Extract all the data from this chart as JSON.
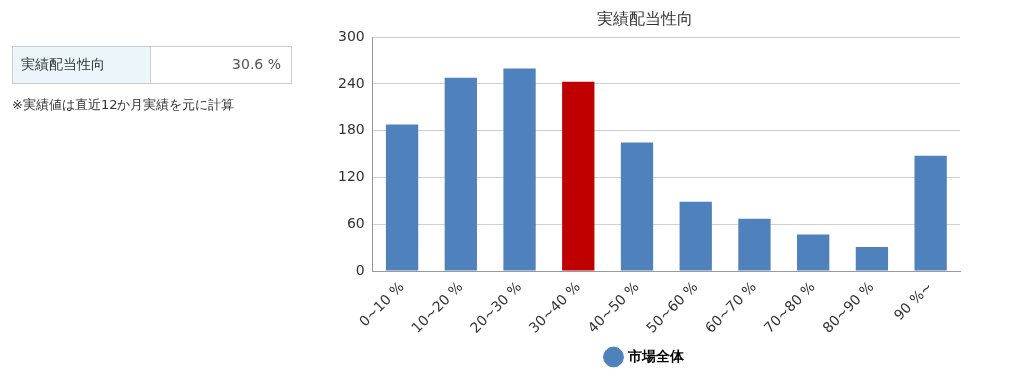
{
  "chart_data": {
    "type": "bar",
    "title": "実績配当性向",
    "categories": [
      "0~10 %",
      "10~20 %",
      "20~30 %",
      "30~40 %",
      "40~50 %",
      "50~60 %",
      "60~70 %",
      "70~80 %",
      "80~90 %",
      "90 %~"
    ],
    "series": [
      {
        "name": "市場全体",
        "color": "#4f81bd",
        "colors": [
          "#4f81bd",
          "#4f81bd",
          "#4f81bd",
          "#c00000",
          "#4f81bd",
          "#4f81bd",
          "#4f81bd",
          "#4f81bd",
          "#4f81bd",
          "#4f81bd"
        ],
        "values": [
          188,
          248,
          260,
          243,
          165,
          89,
          67,
          47,
          31,
          148
        ]
      }
    ],
    "ylim": [
      0,
      300
    ],
    "yticks": [
      0,
      60,
      120,
      180,
      240,
      300
    ],
    "grid": "y",
    "legend": "bottom",
    "annotations": [
      "実績配当性向",
      "30.6 %",
      "※実績値は直近12か月実績を元に計算"
    ]
  }
}
